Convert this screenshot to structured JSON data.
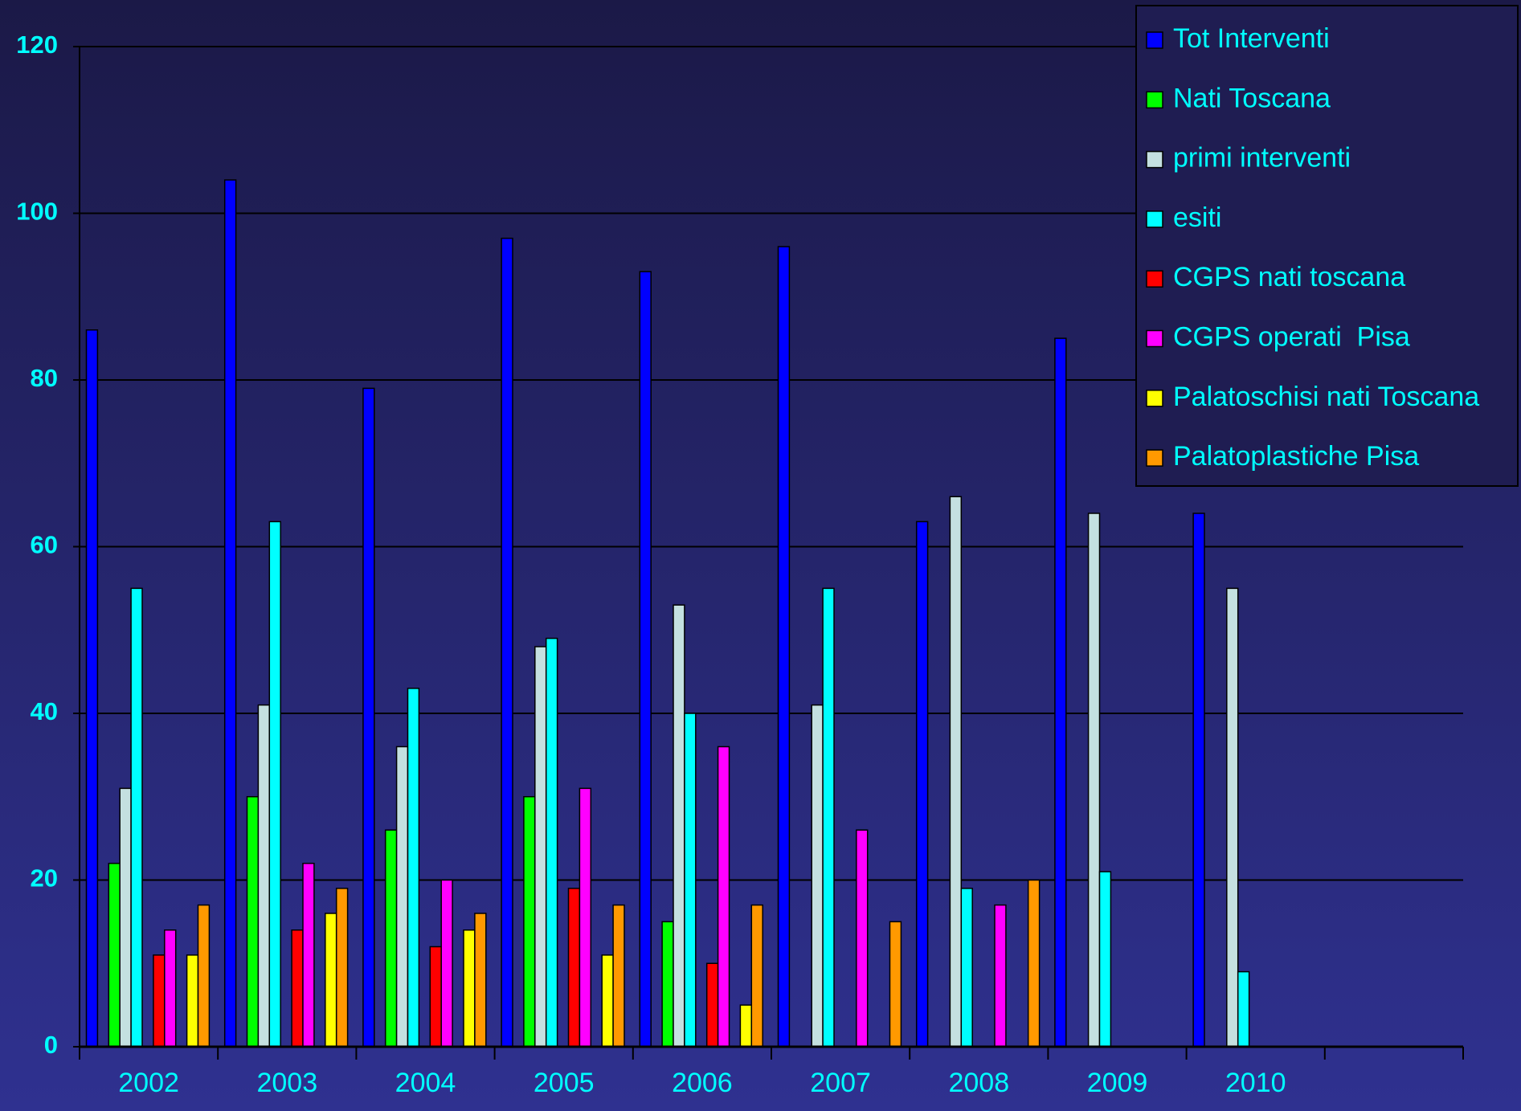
{
  "chart_data": {
    "type": "bar",
    "categories": [
      "2002",
      "2003",
      "2004",
      "2005",
      "2006",
      "2007",
      "2008",
      "2009",
      "2010",
      null
    ],
    "series": [
      {
        "name": "Tot Interventi",
        "color": "#0000ff",
        "values": [
          86,
          104,
          79,
          97,
          93,
          96,
          63,
          85,
          64,
          null
        ]
      },
      {
        "name": "Nati Toscana",
        "color": "#00ff00",
        "values": [
          22,
          30,
          26,
          30,
          15,
          null,
          null,
          null,
          null,
          null
        ]
      },
      {
        "name": "primi interventi",
        "color": "#c4e0e0",
        "values": [
          31,
          41,
          36,
          48,
          53,
          41,
          66,
          64,
          55,
          null
        ]
      },
      {
        "name": "esiti",
        "color": "#00ffff",
        "values": [
          55,
          63,
          43,
          49,
          40,
          55,
          19,
          21,
          9,
          null
        ]
      },
      {
        "name": "CGPS nati toscana",
        "color": "#ff0000",
        "values": [
          11,
          14,
          12,
          19,
          10,
          null,
          null,
          null,
          null,
          null
        ]
      },
      {
        "name": "CGPS operati  Pisa",
        "color": "#ff00ff",
        "values": [
          14,
          22,
          20,
          31,
          36,
          26,
          17,
          null,
          null,
          null
        ]
      },
      {
        "name": "Palatoschisi nati Toscana",
        "color": "#ffff00",
        "values": [
          11,
          16,
          14,
          11,
          5,
          null,
          null,
          null,
          null,
          null
        ]
      },
      {
        "name": "Palatoplastiche Pisa",
        "color": "#ff9900",
        "values": [
          17,
          19,
          16,
          17,
          17,
          15,
          20,
          null,
          null,
          null
        ]
      }
    ],
    "ylim": [
      0,
      120
    ],
    "yticks": [
      0,
      20,
      40,
      60,
      80,
      100,
      120
    ],
    "grid": true,
    "legend": "top-right"
  }
}
